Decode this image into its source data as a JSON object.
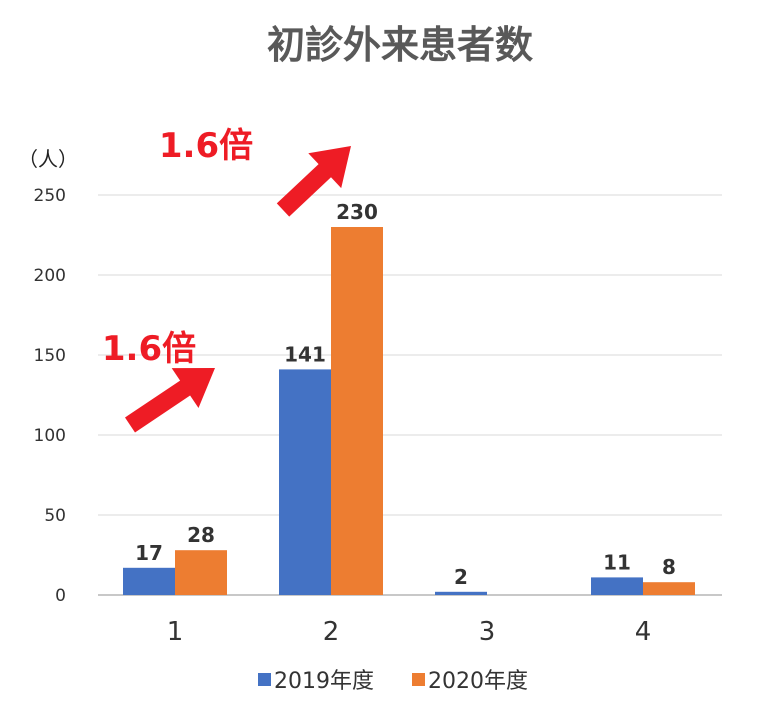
{
  "chart_data": {
    "type": "bar",
    "title": "初診外来患者数",
    "unit_label": "（人）",
    "categories": [
      "1",
      "2",
      "3",
      "4"
    ],
    "series": [
      {
        "name": "2019年度",
        "color": "#4472C4",
        "values": [
          17,
          141,
          2,
          11
        ]
      },
      {
        "name": "2020年度",
        "color": "#ED7D31",
        "values": [
          28,
          230,
          0,
          8
        ]
      }
    ],
    "data_labels": [
      [
        "17",
        "141",
        "2",
        "11"
      ],
      [
        "28",
        "230",
        "",
        "8"
      ]
    ],
    "ylim": [
      0,
      250
    ],
    "yticks": [
      0,
      50,
      100,
      150,
      200,
      250
    ],
    "grid": true,
    "legend_position": "bottom",
    "annotations": [
      {
        "text": "1.6倍",
        "color": "#EE1C25",
        "near_category": "1"
      },
      {
        "text": "1.6倍",
        "color": "#EE1C25",
        "near_category": "2"
      }
    ]
  }
}
